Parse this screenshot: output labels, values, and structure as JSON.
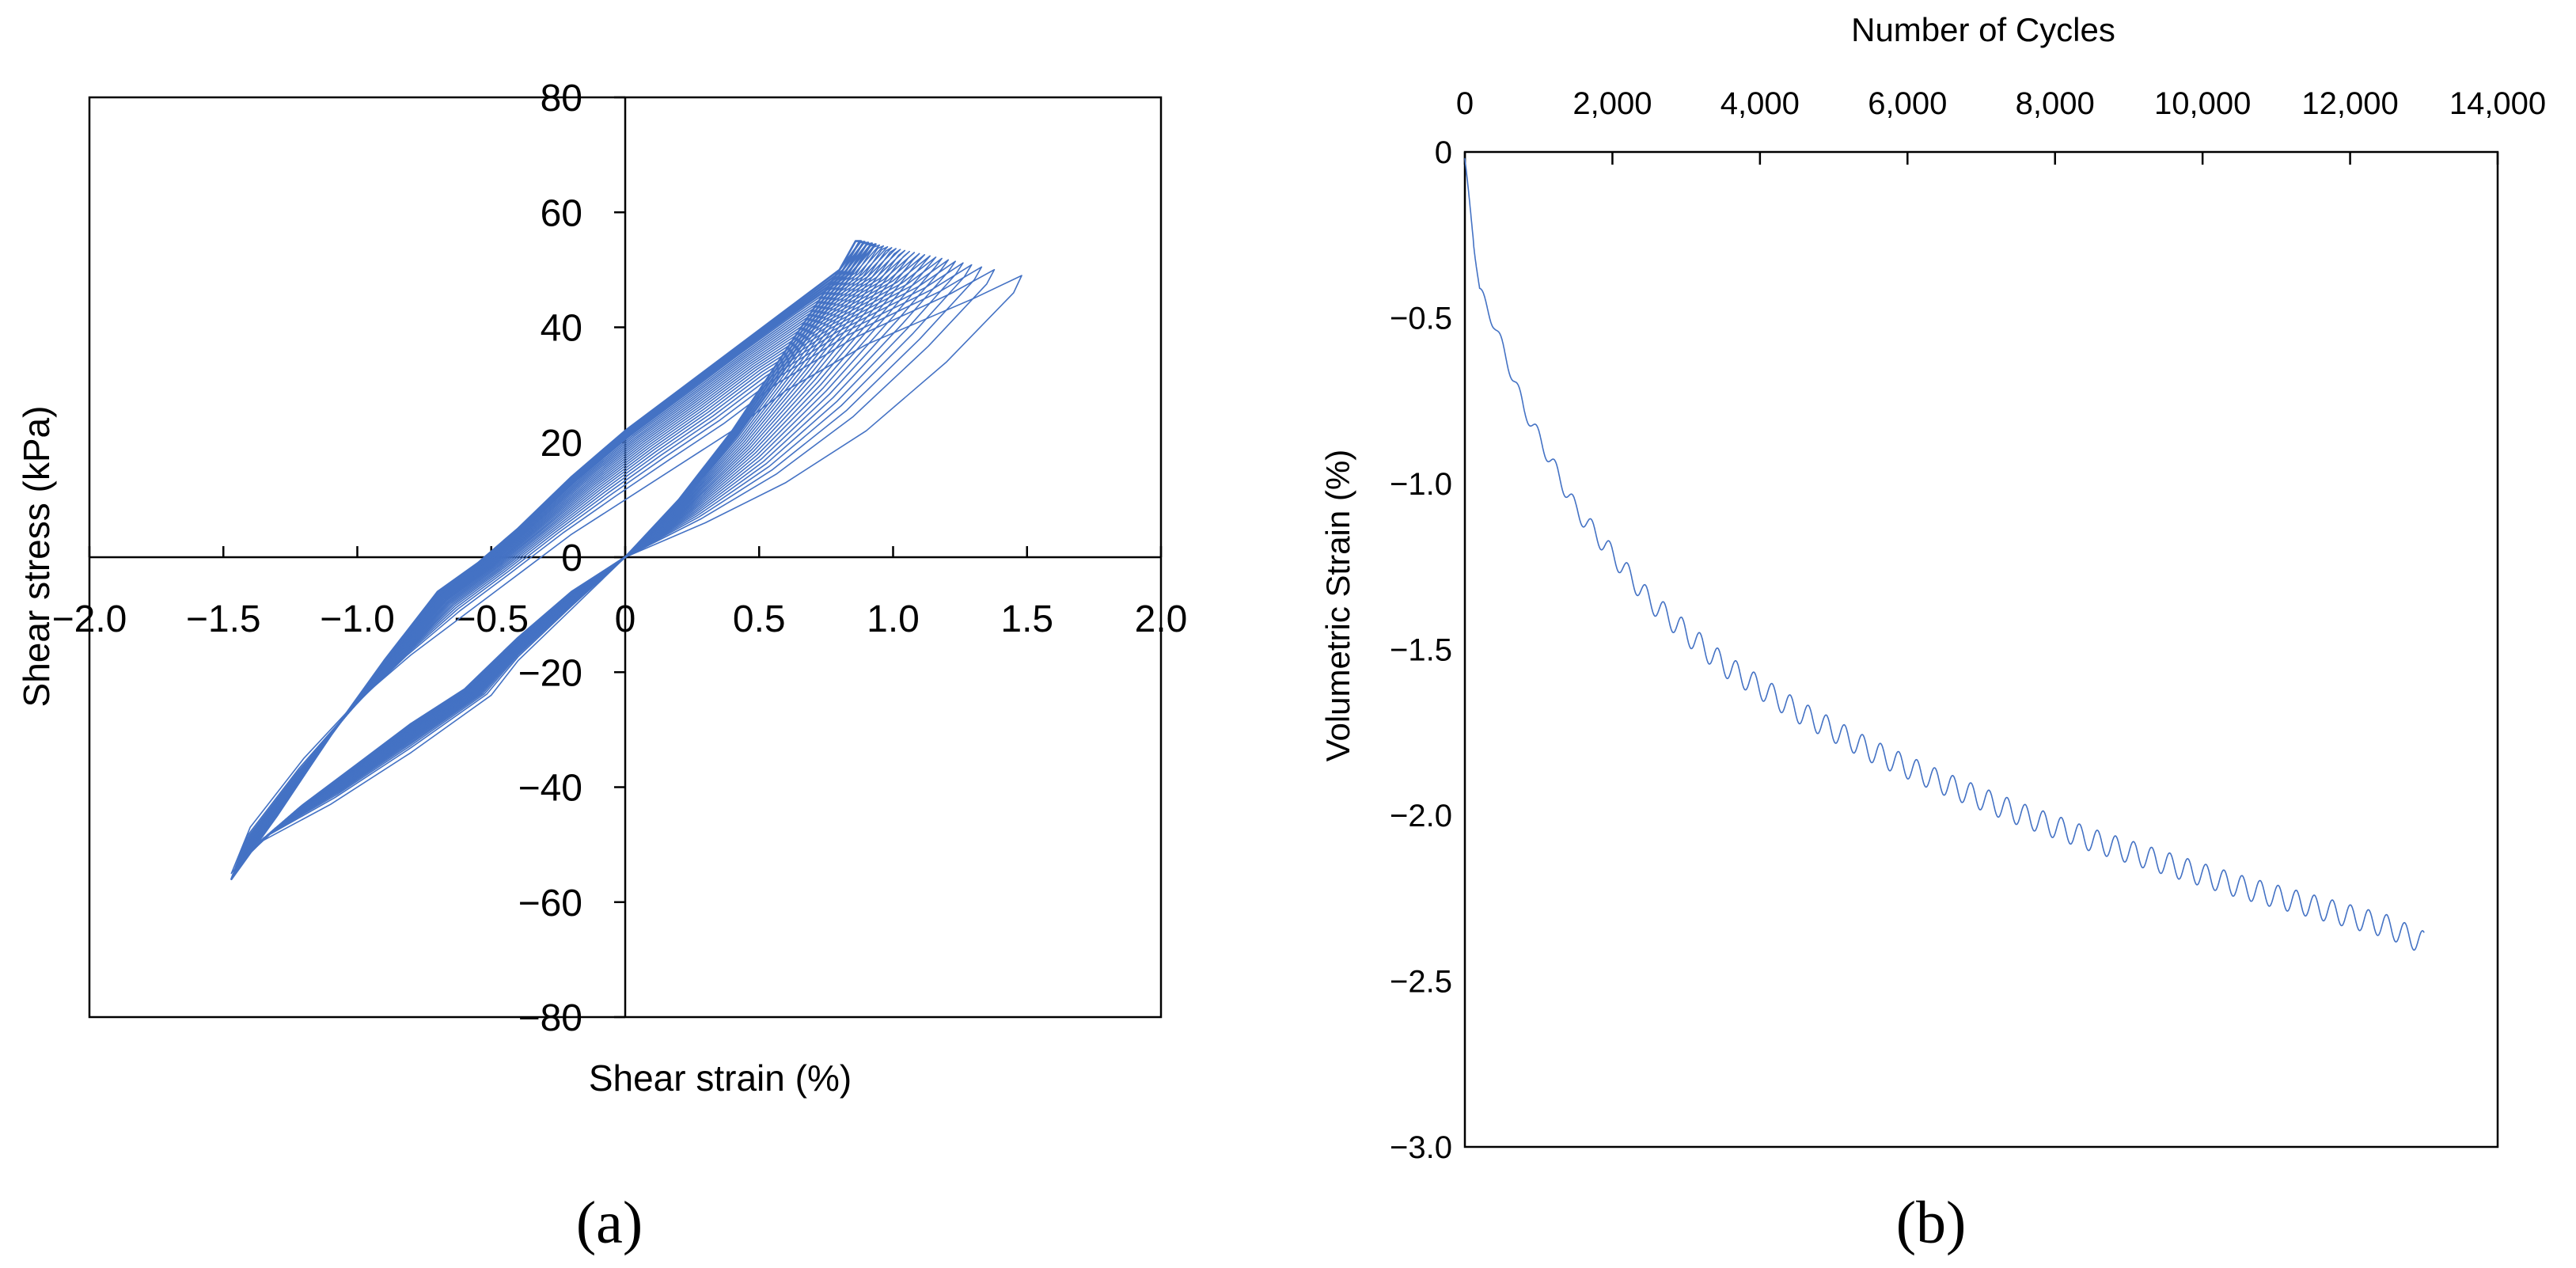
{
  "colors": {
    "series": "#4472C4",
    "axis": "#000000",
    "background": "#ffffff"
  },
  "chart_data": [
    {
      "panel_label": "(a)",
      "type": "line",
      "xlabel": "Shear strain (%)",
      "ylabel": "Shear stress (kPa)",
      "xlim": [
        -2.0,
        2.0
      ],
      "ylim": [
        -80,
        80
      ],
      "x_ticks": [
        -2.0,
        -1.5,
        -1.0,
        -0.5,
        0,
        0.5,
        1.0,
        1.5,
        2.0
      ],
      "x_tick_labels": [
        "−2.0",
        "−1.5",
        "−1.0",
        "−0.5",
        "0",
        "0.5",
        "1.0",
        "1.5",
        "2.0"
      ],
      "y_ticks": [
        -80,
        -60,
        -40,
        -20,
        0,
        20,
        40,
        60,
        80
      ],
      "y_tick_labels": [
        "−80",
        "−60",
        "−40",
        "−20",
        "0",
        "20",
        "40",
        "60",
        "80"
      ],
      "axes_cross_at_origin": true,
      "grid": false,
      "legend": "none",
      "series": [
        {
          "values_x": [
            0,
            0.3,
            0.6,
            0.9,
            1.2,
            1.45,
            1.48,
            1.3,
            0.9,
            0.6,
            0.4,
            0.2,
            0,
            -0.2,
            -0.4,
            -0.6,
            -0.8,
            -1.0,
            -1.2,
            -1.4,
            -1.47,
            -1.38,
            -1.1,
            -0.8,
            -0.5,
            -0.4,
            -0.2,
            0
          ],
          "values_y": [
            0,
            6,
            13,
            22,
            34,
            46,
            49,
            45,
            37,
            29,
            22,
            16,
            10,
            4,
            -3,
            -10,
            -17,
            -25,
            -35,
            -47,
            -55,
            -50,
            -43,
            -34,
            -24,
            -18,
            -9,
            0
          ]
        },
        {
          "values_x": [
            0,
            0.2,
            0.4,
            0.6,
            0.8,
            0.86,
            0.88,
            0.8,
            0.6,
            0.4,
            0.2,
            0,
            -0.2,
            -0.4,
            -0.55,
            -0.7,
            -0.9,
            -1.1,
            -1.3,
            -1.47,
            -1.4,
            -1.2,
            -1.0,
            -0.8,
            -0.6,
            -0.4,
            -0.2,
            0
          ],
          "values_y": [
            0,
            10,
            22,
            36,
            50,
            55,
            55,
            50,
            43,
            36,
            29,
            22,
            14,
            5,
            -1,
            -6,
            -18,
            -31,
            -45,
            -56,
            -51,
            -43,
            -36,
            -29,
            -23,
            -14,
            -6,
            0
          ]
        }
      ]
    },
    {
      "panel_label": "(b)",
      "type": "line",
      "xlabel": "Number of Cycles",
      "ylabel": "Volumetric Strain (%)",
      "xlim": [
        0,
        14000
      ],
      "ylim": [
        -3.0,
        0
      ],
      "x_axis_position": "top",
      "x_ticks": [
        0,
        2000,
        4000,
        6000,
        8000,
        10000,
        12000,
        14000
      ],
      "x_tick_labels": [
        "0",
        "2,000",
        "4,000",
        "6,000",
        "8,000",
        "10,000",
        "12,000",
        "14,000"
      ],
      "y_ticks": [
        0,
        -0.5,
        -1.0,
        -1.5,
        -2.0,
        -2.5,
        -3.0
      ],
      "y_tick_labels": [
        "0",
        "−0.5",
        "−1.0",
        "−1.5",
        "−2.0",
        "−2.5",
        "−3.0"
      ],
      "grid": false,
      "legend": "none",
      "series": [
        {
          "x": [
            0,
            200,
            400,
            800,
            1500,
            2500,
            3500,
            4500,
            5500,
            6500,
            7500,
            8500,
            9500,
            10500,
            11500,
            12500,
            13000
          ],
          "values": [
            -0.02,
            -0.4,
            -0.5,
            -0.75,
            -1.05,
            -1.32,
            -1.51,
            -1.65,
            -1.77,
            -1.87,
            -1.96,
            -2.04,
            -2.11,
            -2.18,
            -2.24,
            -2.3,
            -2.35
          ]
        }
      ]
    }
  ]
}
